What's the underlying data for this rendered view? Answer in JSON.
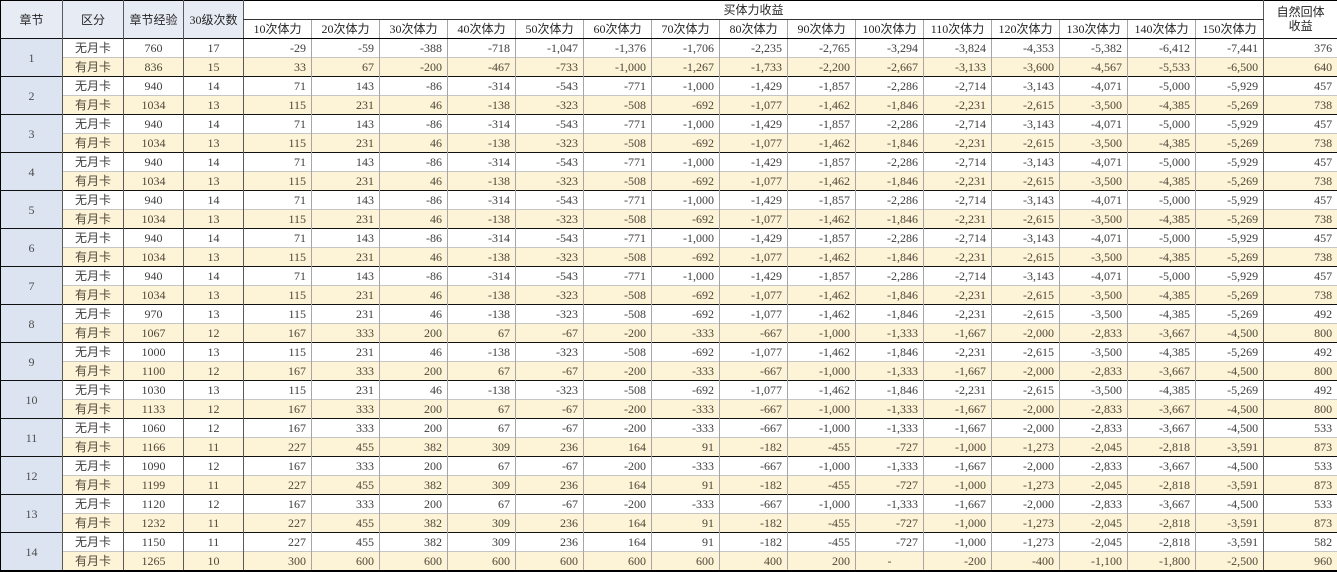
{
  "colors": {
    "card_row_bg": "#fdf3d6",
    "chapter_col_bg": "#dce4f1",
    "header_left_bg": "#e7ebf4",
    "grid_dark": "#595959",
    "grid_light": "#a6a6a6",
    "chapter_separator": "#111111",
    "text": "#3d3d3d"
  },
  "table": {
    "headers": {
      "chapter": "章节",
      "category": "区分",
      "chapter_exp": "章节经验",
      "lv30_times": "30级次数",
      "buy_stamina_group": "买体力收益",
      "stamina_cols": [
        "10次体力",
        "20次体力",
        "30次体力",
        "40次体力",
        "50次体力",
        "60次体力",
        "70次体力",
        "80次体力",
        "90次体力",
        "100次体力",
        "110次体力",
        "120次体力",
        "130次体力",
        "140次体力",
        "150次体力"
      ],
      "natural_recovery": "自然回体收益"
    },
    "chapters": [
      {
        "chapter": "1",
        "rows": [
          {
            "category": "无月卡",
            "exp": "760",
            "times": "17",
            "stamina": [
              "-29",
              "-59",
              "-388",
              "-718",
              "-1,047",
              "-1,376",
              "-1,706",
              "-2,235",
              "-2,765",
              "-3,294",
              "-3,824",
              "-4,353",
              "-5,382",
              "-6,412",
              "-7,441"
            ],
            "natural": "376"
          },
          {
            "category": "有月卡",
            "exp": "836",
            "times": "15",
            "stamina": [
              "33",
              "67",
              "-200",
              "-467",
              "-733",
              "-1,000",
              "-1,267",
              "-1,733",
              "-2,200",
              "-2,667",
              "-3,133",
              "-3,600",
              "-4,567",
              "-5,533",
              "-6,500"
            ],
            "natural": "640"
          }
        ]
      },
      {
        "chapter": "2",
        "rows": [
          {
            "category": "无月卡",
            "exp": "940",
            "times": "14",
            "stamina": [
              "71",
              "143",
              "-86",
              "-314",
              "-543",
              "-771",
              "-1,000",
              "-1,429",
              "-1,857",
              "-2,286",
              "-2,714",
              "-3,143",
              "-4,071",
              "-5,000",
              "-5,929"
            ],
            "natural": "457"
          },
          {
            "category": "有月卡",
            "exp": "1034",
            "times": "13",
            "stamina": [
              "115",
              "231",
              "46",
              "-138",
              "-323",
              "-508",
              "-692",
              "-1,077",
              "-1,462",
              "-1,846",
              "-2,231",
              "-2,615",
              "-3,500",
              "-4,385",
              "-5,269"
            ],
            "natural": "738"
          }
        ]
      },
      {
        "chapter": "3",
        "rows": [
          {
            "category": "无月卡",
            "exp": "940",
            "times": "14",
            "stamina": [
              "71",
              "143",
              "-86",
              "-314",
              "-543",
              "-771",
              "-1,000",
              "-1,429",
              "-1,857",
              "-2,286",
              "-2,714",
              "-3,143",
              "-4,071",
              "-5,000",
              "-5,929"
            ],
            "natural": "457"
          },
          {
            "category": "有月卡",
            "exp": "1034",
            "times": "13",
            "stamina": [
              "115",
              "231",
              "46",
              "-138",
              "-323",
              "-508",
              "-692",
              "-1,077",
              "-1,462",
              "-1,846",
              "-2,231",
              "-2,615",
              "-3,500",
              "-4,385",
              "-5,269"
            ],
            "natural": "738"
          }
        ]
      },
      {
        "chapter": "4",
        "rows": [
          {
            "category": "无月卡",
            "exp": "940",
            "times": "14",
            "stamina": [
              "71",
              "143",
              "-86",
              "-314",
              "-543",
              "-771",
              "-1,000",
              "-1,429",
              "-1,857",
              "-2,286",
              "-2,714",
              "-3,143",
              "-4,071",
              "-5,000",
              "-5,929"
            ],
            "natural": "457"
          },
          {
            "category": "有月卡",
            "exp": "1034",
            "times": "13",
            "stamina": [
              "115",
              "231",
              "46",
              "-138",
              "-323",
              "-508",
              "-692",
              "-1,077",
              "-1,462",
              "-1,846",
              "-2,231",
              "-2,615",
              "-3,500",
              "-4,385",
              "-5,269"
            ],
            "natural": "738"
          }
        ]
      },
      {
        "chapter": "5",
        "rows": [
          {
            "category": "无月卡",
            "exp": "940",
            "times": "14",
            "stamina": [
              "71",
              "143",
              "-86",
              "-314",
              "-543",
              "-771",
              "-1,000",
              "-1,429",
              "-1,857",
              "-2,286",
              "-2,714",
              "-3,143",
              "-4,071",
              "-5,000",
              "-5,929"
            ],
            "natural": "457"
          },
          {
            "category": "有月卡",
            "exp": "1034",
            "times": "13",
            "stamina": [
              "115",
              "231",
              "46",
              "-138",
              "-323",
              "-508",
              "-692",
              "-1,077",
              "-1,462",
              "-1,846",
              "-2,231",
              "-2,615",
              "-3,500",
              "-4,385",
              "-5,269"
            ],
            "natural": "738"
          }
        ]
      },
      {
        "chapter": "6",
        "rows": [
          {
            "category": "无月卡",
            "exp": "940",
            "times": "14",
            "stamina": [
              "71",
              "143",
              "-86",
              "-314",
              "-543",
              "-771",
              "-1,000",
              "-1,429",
              "-1,857",
              "-2,286",
              "-2,714",
              "-3,143",
              "-4,071",
              "-5,000",
              "-5,929"
            ],
            "natural": "457"
          },
          {
            "category": "有月卡",
            "exp": "1034",
            "times": "13",
            "stamina": [
              "115",
              "231",
              "46",
              "-138",
              "-323",
              "-508",
              "-692",
              "-1,077",
              "-1,462",
              "-1,846",
              "-2,231",
              "-2,615",
              "-3,500",
              "-4,385",
              "-5,269"
            ],
            "natural": "738"
          }
        ]
      },
      {
        "chapter": "7",
        "rows": [
          {
            "category": "无月卡",
            "exp": "940",
            "times": "14",
            "stamina": [
              "71",
              "143",
              "-86",
              "-314",
              "-543",
              "-771",
              "-1,000",
              "-1,429",
              "-1,857",
              "-2,286",
              "-2,714",
              "-3,143",
              "-4,071",
              "-5,000",
              "-5,929"
            ],
            "natural": "457"
          },
          {
            "category": "有月卡",
            "exp": "1034",
            "times": "13",
            "stamina": [
              "115",
              "231",
              "46",
              "-138",
              "-323",
              "-508",
              "-692",
              "-1,077",
              "-1,462",
              "-1,846",
              "-2,231",
              "-2,615",
              "-3,500",
              "-4,385",
              "-5,269"
            ],
            "natural": "738"
          }
        ]
      },
      {
        "chapter": "8",
        "rows": [
          {
            "category": "无月卡",
            "exp": "970",
            "times": "13",
            "stamina": [
              "115",
              "231",
              "46",
              "-138",
              "-323",
              "-508",
              "-692",
              "-1,077",
              "-1,462",
              "-1,846",
              "-2,231",
              "-2,615",
              "-3,500",
              "-4,385",
              "-5,269"
            ],
            "natural": "492"
          },
          {
            "category": "有月卡",
            "exp": "1067",
            "times": "12",
            "stamina": [
              "167",
              "333",
              "200",
              "67",
              "-67",
              "-200",
              "-333",
              "-667",
              "-1,000",
              "-1,333",
              "-1,667",
              "-2,000",
              "-2,833",
              "-3,667",
              "-4,500"
            ],
            "natural": "800"
          }
        ]
      },
      {
        "chapter": "9",
        "rows": [
          {
            "category": "无月卡",
            "exp": "1000",
            "times": "13",
            "stamina": [
              "115",
              "231",
              "46",
              "-138",
              "-323",
              "-508",
              "-692",
              "-1,077",
              "-1,462",
              "-1,846",
              "-2,231",
              "-2,615",
              "-3,500",
              "-4,385",
              "-5,269"
            ],
            "natural": "492"
          },
          {
            "category": "有月卡",
            "exp": "1100",
            "times": "12",
            "stamina": [
              "167",
              "333",
              "200",
              "67",
              "-67",
              "-200",
              "-333",
              "-667",
              "-1,000",
              "-1,333",
              "-1,667",
              "-2,000",
              "-2,833",
              "-3,667",
              "-4,500"
            ],
            "natural": "800"
          }
        ]
      },
      {
        "chapter": "10",
        "rows": [
          {
            "category": "无月卡",
            "exp": "1030",
            "times": "13",
            "stamina": [
              "115",
              "231",
              "46",
              "-138",
              "-323",
              "-508",
              "-692",
              "-1,077",
              "-1,462",
              "-1,846",
              "-2,231",
              "-2,615",
              "-3,500",
              "-4,385",
              "-5,269"
            ],
            "natural": "492"
          },
          {
            "category": "有月卡",
            "exp": "1133",
            "times": "12",
            "stamina": [
              "167",
              "333",
              "200",
              "67",
              "-67",
              "-200",
              "-333",
              "-667",
              "-1,000",
              "-1,333",
              "-1,667",
              "-2,000",
              "-2,833",
              "-3,667",
              "-4,500"
            ],
            "natural": "800"
          }
        ]
      },
      {
        "chapter": "11",
        "rows": [
          {
            "category": "无月卡",
            "exp": "1060",
            "times": "12",
            "stamina": [
              "167",
              "333",
              "200",
              "67",
              "-67",
              "-200",
              "-333",
              "-667",
              "-1,000",
              "-1,333",
              "-1,667",
              "-2,000",
              "-2,833",
              "-3,667",
              "-4,500"
            ],
            "natural": "533"
          },
          {
            "category": "有月卡",
            "exp": "1166",
            "times": "11",
            "stamina": [
              "227",
              "455",
              "382",
              "309",
              "236",
              "164",
              "91",
              "-182",
              "-455",
              "-727",
              "-1,000",
              "-1,273",
              "-2,045",
              "-2,818",
              "-3,591"
            ],
            "natural": "873"
          }
        ]
      },
      {
        "chapter": "12",
        "rows": [
          {
            "category": "无月卡",
            "exp": "1090",
            "times": "12",
            "stamina": [
              "167",
              "333",
              "200",
              "67",
              "-67",
              "-200",
              "-333",
              "-667",
              "-1,000",
              "-1,333",
              "-1,667",
              "-2,000",
              "-2,833",
              "-3,667",
              "-4,500"
            ],
            "natural": "533"
          },
          {
            "category": "有月卡",
            "exp": "1199",
            "times": "11",
            "stamina": [
              "227",
              "455",
              "382",
              "309",
              "236",
              "164",
              "91",
              "-182",
              "-455",
              "-727",
              "-1,000",
              "-1,273",
              "-2,045",
              "-2,818",
              "-3,591"
            ],
            "natural": "873"
          }
        ]
      },
      {
        "chapter": "13",
        "rows": [
          {
            "category": "无月卡",
            "exp": "1120",
            "times": "12",
            "stamina": [
              "167",
              "333",
              "200",
              "67",
              "-67",
              "-200",
              "-333",
              "-667",
              "-1,000",
              "-1,333",
              "-1,667",
              "-2,000",
              "-2,833",
              "-3,667",
              "-4,500"
            ],
            "natural": "533"
          },
          {
            "category": "有月卡",
            "exp": "1232",
            "times": "11",
            "stamina": [
              "227",
              "455",
              "382",
              "309",
              "236",
              "164",
              "91",
              "-182",
              "-455",
              "-727",
              "-1,000",
              "-1,273",
              "-2,045",
              "-2,818",
              "-3,591"
            ],
            "natural": "873"
          }
        ]
      },
      {
        "chapter": "14",
        "rows": [
          {
            "category": "无月卡",
            "exp": "1150",
            "times": "11",
            "stamina": [
              "227",
              "455",
              "382",
              "309",
              "236",
              "164",
              "91",
              "-182",
              "-455",
              "-727",
              "-1,000",
              "-1,273",
              "-2,045",
              "-2,818",
              "-3,591"
            ],
            "natural": "582"
          },
          {
            "category": "有月卡",
            "exp": "1265",
            "times": "10",
            "stamina": [
              "300",
              "600",
              "600",
              "600",
              "600",
              "600",
              "600",
              "400",
              "200",
              "-",
              "-200",
              "-400",
              "-1,100",
              "-1,800",
              "-2,500"
            ],
            "natural": "960"
          }
        ]
      }
    ]
  }
}
